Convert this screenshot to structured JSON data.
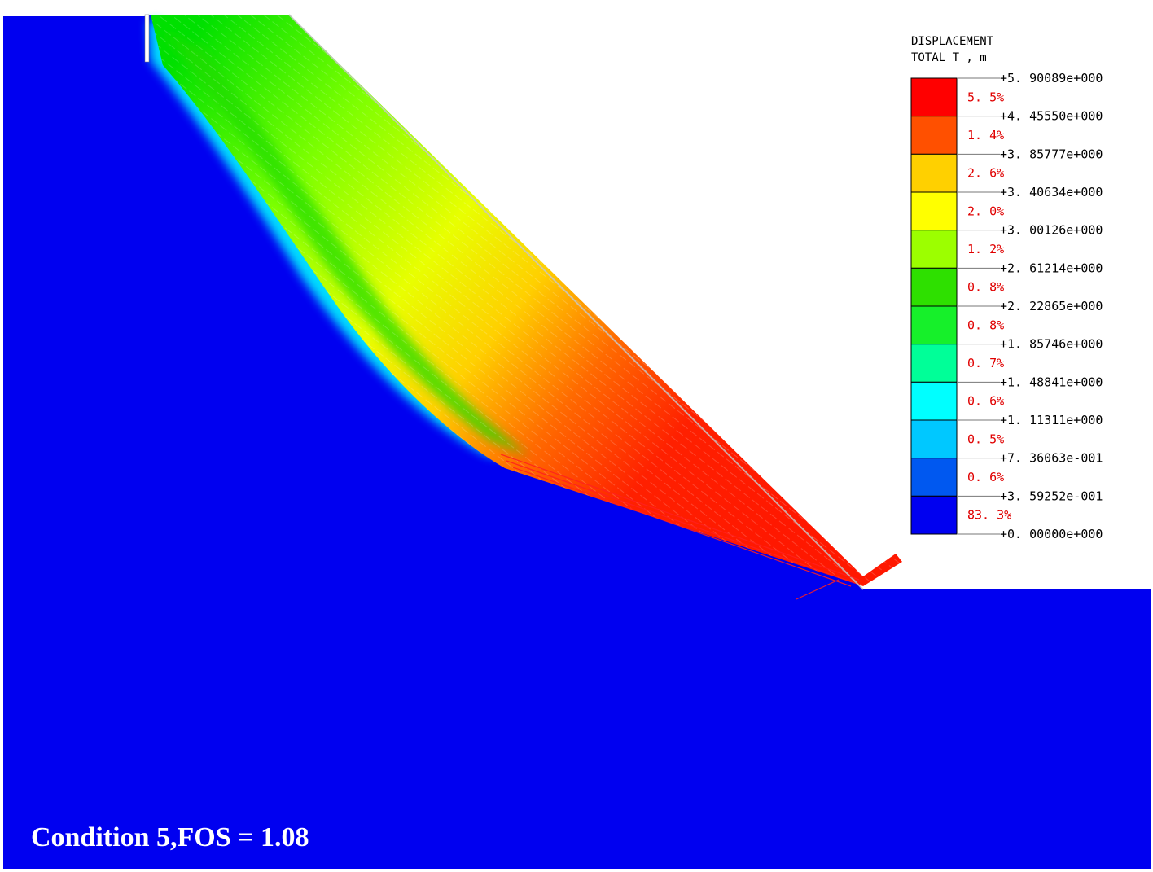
{
  "caption": "Condition 5,FOS = 1.08",
  "legend": {
    "title_line1": "DISPLACEMENT",
    "title_line2": "TOTAL T , m",
    "values": [
      "+5. 90089e+000",
      "+4. 45550e+000",
      "+3. 85777e+000",
      "+3. 40634e+000",
      "+3. 00126e+000",
      "+2. 61214e+000",
      "+2. 22865e+000",
      "+1. 85746e+000",
      "+1. 48841e+000",
      "+1. 11311e+000",
      "+7. 36063e-001",
      "+3. 59252e-001",
      "+0. 00000e+000"
    ],
    "bands": [
      {
        "percent": "5. 5%",
        "color": "#ff0000"
      },
      {
        "percent": "1. 4%",
        "color": "#ff5000"
      },
      {
        "percent": "2. 6%",
        "color": "#ffd000"
      },
      {
        "percent": "2. 0%",
        "color": "#ffff00"
      },
      {
        "percent": "1. 2%",
        "color": "#9cff00"
      },
      {
        "percent": "0. 8%",
        "color": "#2ee000"
      },
      {
        "percent": "0. 8%",
        "color": "#16f02a"
      },
      {
        "percent": "0. 7%",
        "color": "#00ff98"
      },
      {
        "percent": "0. 6%",
        "color": "#00ffff"
      },
      {
        "percent": "0. 5%",
        "color": "#00c8ff"
      },
      {
        "percent": "0. 6%",
        "color": "#0058f0"
      },
      {
        "percent": "83. 3%",
        "color": "#0000f0"
      }
    ]
  },
  "colors": {
    "background": "#ffffff",
    "rock": "#0000f0"
  }
}
